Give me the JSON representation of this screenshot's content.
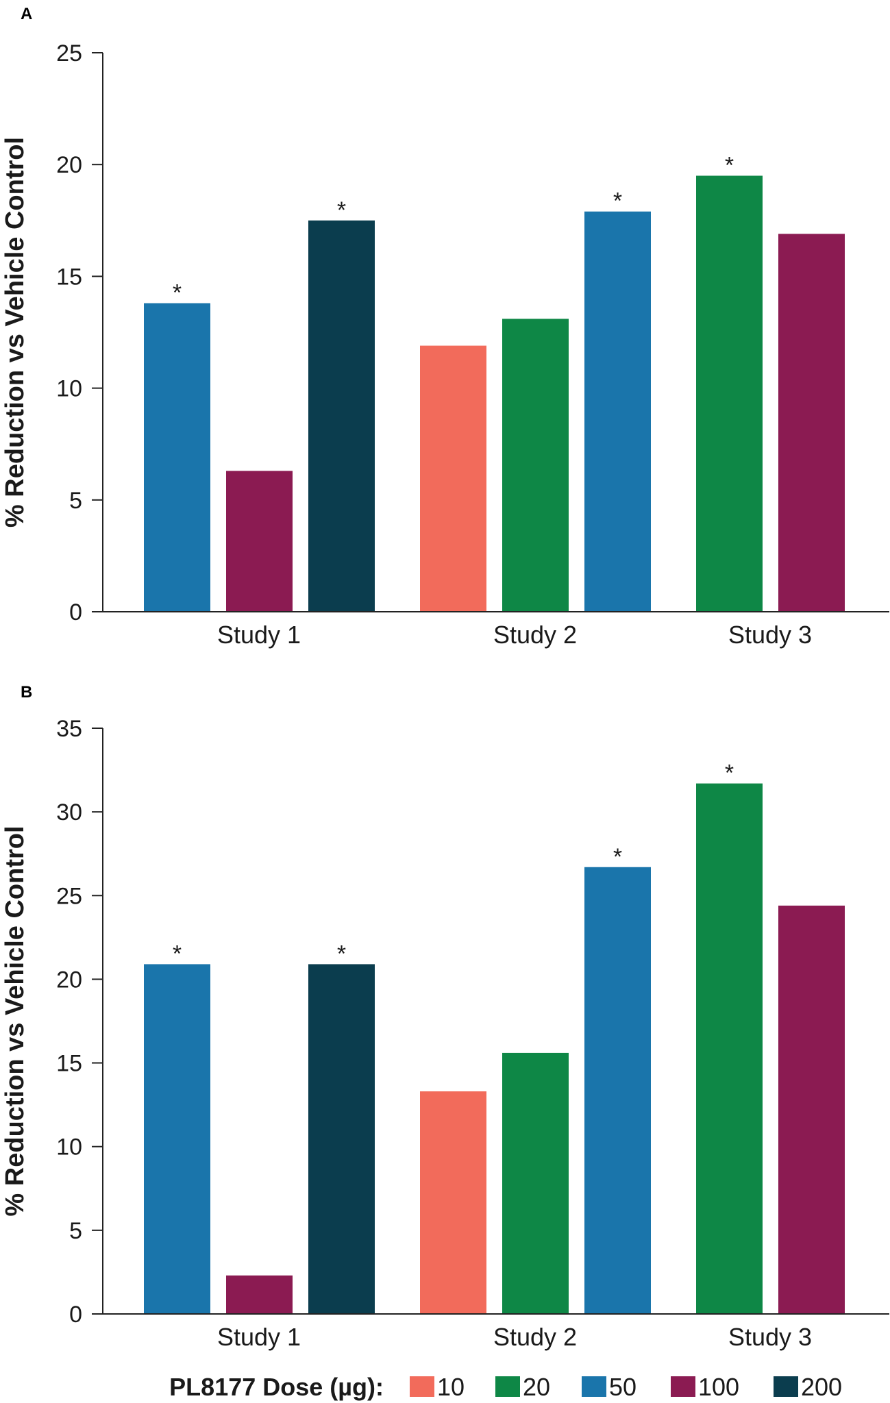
{
  "dose_colors": {
    "10": "#f26b5b",
    "20": "#0e8746",
    "50": "#1a75ab",
    "100": "#8b1b52",
    "200": "#0b3d4e"
  },
  "legend": {
    "title": "PL8177 Dose (µg):",
    "items": [
      {
        "dose": "10",
        "label": "10"
      },
      {
        "dose": "20",
        "label": "20"
      },
      {
        "dose": "50",
        "label": "50"
      },
      {
        "dose": "100",
        "label": "100"
      },
      {
        "dose": "200",
        "label": "200"
      }
    ]
  },
  "chart_data": [
    {
      "type": "bar",
      "panel": "A",
      "ylabel": "% Reduction vs Vehicle Control",
      "xlabel": "",
      "ylim": [
        0,
        25
      ],
      "yticks": [
        0,
        5,
        10,
        15,
        20,
        25
      ],
      "groups": [
        {
          "label": "Study 1",
          "bars": [
            {
              "dose": "50",
              "value": 13.8,
              "sig": "*"
            },
            {
              "dose": "100",
              "value": 6.3,
              "sig": ""
            },
            {
              "dose": "200",
              "value": 17.5,
              "sig": "*"
            }
          ]
        },
        {
          "label": "Study 2",
          "bars": [
            {
              "dose": "10",
              "value": 11.9,
              "sig": ""
            },
            {
              "dose": "20",
              "value": 13.1,
              "sig": ""
            },
            {
              "dose": "50",
              "value": 17.9,
              "sig": "*"
            }
          ]
        },
        {
          "label": "Study 3",
          "bars": [
            {
              "dose": "20",
              "value": 19.5,
              "sig": "*"
            },
            {
              "dose": "100",
              "value": 16.9,
              "sig": ""
            }
          ]
        }
      ]
    },
    {
      "type": "bar",
      "panel": "B",
      "ylabel": "% Reduction vs Vehicle Control",
      "xlabel": "",
      "ylim": [
        0,
        35
      ],
      "yticks": [
        0,
        5,
        10,
        15,
        20,
        25,
        30,
        35
      ],
      "groups": [
        {
          "label": "Study 1",
          "bars": [
            {
              "dose": "50",
              "value": 20.9,
              "sig": "*"
            },
            {
              "dose": "100",
              "value": 2.3,
              "sig": ""
            },
            {
              "dose": "200",
              "value": 20.9,
              "sig": "*"
            }
          ]
        },
        {
          "label": "Study 2",
          "bars": [
            {
              "dose": "10",
              "value": 13.3,
              "sig": ""
            },
            {
              "dose": "20",
              "value": 15.6,
              "sig": ""
            },
            {
              "dose": "50",
              "value": 26.7,
              "sig": "*"
            }
          ]
        },
        {
          "label": "Study 3",
          "bars": [
            {
              "dose": "20",
              "value": 31.7,
              "sig": "*"
            },
            {
              "dose": "100",
              "value": 24.4,
              "sig": ""
            }
          ]
        }
      ]
    }
  ]
}
